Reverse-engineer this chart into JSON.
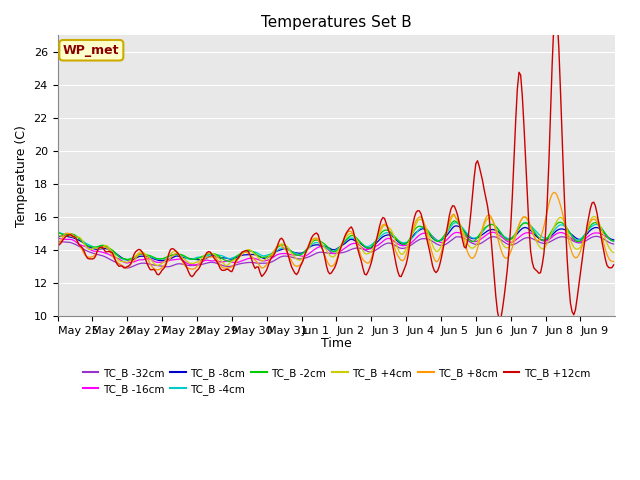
{
  "title": "Temperatures Set B",
  "xlabel": "Time",
  "ylabel": "Temperature (C)",
  "ylim": [
    10,
    27
  ],
  "yticks": [
    10,
    12,
    14,
    16,
    18,
    20,
    22,
    24,
    26
  ],
  "fig_bg": "#ffffff",
  "plot_bg": "#e8e8e8",
  "grid_color": "#ffffff",
  "annotation_text": "WP_met",
  "annotation_color": "#8B0000",
  "annotation_bg": "#ffffcc",
  "annotation_edge": "#ccaa00",
  "series_colors": {
    "TC_B -32cm": "#9933cc",
    "TC_B -16cm": "#ff00ff",
    "TC_B -8cm": "#0000cc",
    "TC_B -4cm": "#00cccc",
    "TC_B -2cm": "#00cc00",
    "TC_B +4cm": "#cccc00",
    "TC_B +8cm": "#ff9900",
    "TC_B +12cm": "#cc0000"
  },
  "legend_order": [
    "TC_B -32cm",
    "TC_B -16cm",
    "TC_B -8cm",
    "TC_B -4cm",
    "TC_B -2cm",
    "TC_B +4cm",
    "TC_B +8cm",
    "TC_B +12cm"
  ],
  "n_points": 336,
  "date_labels": [
    "May 25",
    "May 26",
    "May 27",
    "May 28",
    "May 29",
    "May 30",
    "May 31",
    "Jun 1",
    "Jun 2",
    "Jun 3",
    "Jun 4",
    "Jun 5",
    "Jun 6",
    "Jun 7",
    "Jun 8",
    "Jun 9"
  ],
  "date_tick_positions": [
    0,
    21,
    42,
    63,
    84,
    105,
    126,
    147,
    168,
    189,
    210,
    231,
    252,
    273,
    294,
    315
  ]
}
